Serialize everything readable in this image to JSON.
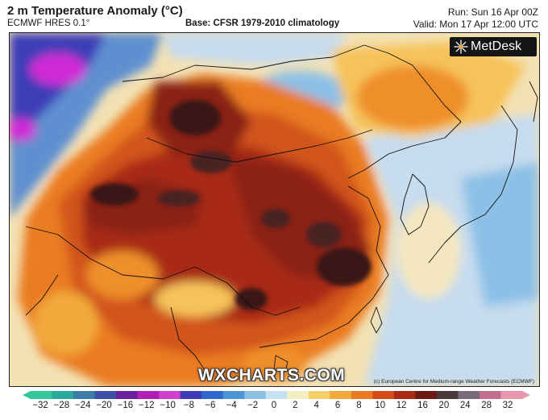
{
  "header": {
    "title": "2 m Temperature Anomaly (°C)",
    "model": "ECMWF HRES 0.1°",
    "base": "Base: CFSR 1979-2010 climatology",
    "run": "Run: Sun 16 Apr 00Z",
    "valid": "Valid: Mon 17 Apr 12:00 UTC"
  },
  "logo": {
    "text": "MetDesk",
    "icon": "metdesk-star-icon"
  },
  "watermark": "WXCHARTS.COM",
  "credit": "(c) European Centre for Medium-range Weather Forecasts (ECMWF)",
  "colorbar": {
    "ticks": [
      "−32",
      "−28",
      "−24",
      "−20",
      "−16",
      "−12",
      "−10",
      "−8",
      "−6",
      "−4",
      "−2",
      "0",
      "2",
      "4",
      "6",
      "8",
      "10",
      "12",
      "16",
      "20",
      "24",
      "28",
      "32"
    ],
    "colors": [
      "#34c79c",
      "#2aa99a",
      "#3c7ea8",
      "#3e4fa6",
      "#6a1f9e",
      "#b21fb4",
      "#cf3fcf",
      "#3d3db8",
      "#2f67cc",
      "#4b95d6",
      "#8cc0e6",
      "#c8e1f2",
      "#f4efc3",
      "#f6cf6a",
      "#f2a93b",
      "#ea7b24",
      "#d44d18",
      "#a82a14",
      "#6e1a15",
      "#4a3a3a",
      "#7a6a7a",
      "#c06f90",
      "#e996ac"
    ]
  },
  "colors": {
    "deep_warm": "#3b1616",
    "very_warm": "#8a2013",
    "warm": "#d2541a",
    "mild_warm": "#ef8f2c",
    "slight_warm": "#f6c35a",
    "near_zero": "#f4e7c0",
    "cool": "#c6dcef",
    "cold": "#5e8fd0",
    "very_cold": "#d02bd6"
  }
}
